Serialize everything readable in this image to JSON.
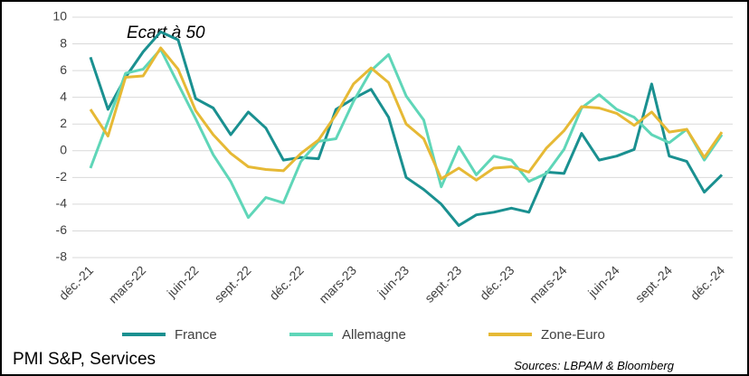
{
  "chart_data": {
    "type": "line",
    "annotation": "Ecart à 50",
    "title": "PMI S&P, Services",
    "source": "Sources: LBPAM & Bloomberg",
    "categories": [
      "déc.-21",
      null,
      null,
      "mars-22",
      null,
      null,
      "juin-22",
      null,
      null,
      "sept.-22",
      null,
      null,
      "déc.-22",
      null,
      null,
      "mars-23",
      null,
      null,
      "juin-23",
      null,
      null,
      "sept.-23",
      null,
      null,
      "déc.-23",
      null,
      null,
      "mars-24",
      null,
      null,
      "juin-24",
      null,
      null,
      "sept.-24",
      null,
      null,
      "déc.-24"
    ],
    "series": [
      {
        "name": "France",
        "color": "#1a9090",
        "values": [
          7.0,
          3.1,
          5.5,
          7.4,
          8.9,
          8.3,
          3.9,
          3.2,
          1.2,
          2.9,
          1.7,
          -0.7,
          -0.5,
          -0.6,
          3.1,
          3.9,
          4.6,
          2.5,
          -2.0,
          -2.9,
          -4.0,
          -5.6,
          -4.8,
          -4.6,
          -4.3,
          -4.6,
          -1.6,
          -1.7,
          1.3,
          -0.7,
          -0.4,
          0.1,
          5.0,
          -0.4,
          -0.8,
          -3.1,
          -1.8
        ]
      },
      {
        "name": "Allemagne",
        "color": "#5fd6b8",
        "values": [
          -1.3,
          2.2,
          5.8,
          6.1,
          7.6,
          5.0,
          2.4,
          -0.3,
          -2.3,
          -5.0,
          -3.5,
          -3.9,
          -0.8,
          0.7,
          0.9,
          3.7,
          6.0,
          7.2,
          4.1,
          2.3,
          -2.7,
          0.3,
          -1.8,
          -0.4,
          -0.7,
          -2.3,
          -1.7,
          0.1,
          3.2,
          4.2,
          3.1,
          2.5,
          1.2,
          0.6,
          1.6,
          -0.7,
          1.2
        ]
      },
      {
        "name": "Zone-Euro",
        "color": "#e6b935",
        "values": [
          3.1,
          1.1,
          5.5,
          5.6,
          7.7,
          6.1,
          3.0,
          1.2,
          -0.2,
          -1.2,
          -1.4,
          -1.5,
          -0.2,
          0.8,
          2.7,
          5.0,
          6.2,
          5.1,
          2.0,
          0.9,
          -2.1,
          -1.3,
          -2.2,
          -1.3,
          -1.2,
          -1.6,
          0.2,
          1.5,
          3.3,
          3.2,
          2.8,
          1.9,
          2.9,
          1.4,
          1.6,
          -0.5,
          1.4
        ]
      }
    ],
    "ylim": [
      -8,
      10
    ],
    "yticks": [
      -8,
      -6,
      -4,
      -2,
      0,
      2,
      4,
      6,
      8,
      10
    ],
    "grid": true
  }
}
